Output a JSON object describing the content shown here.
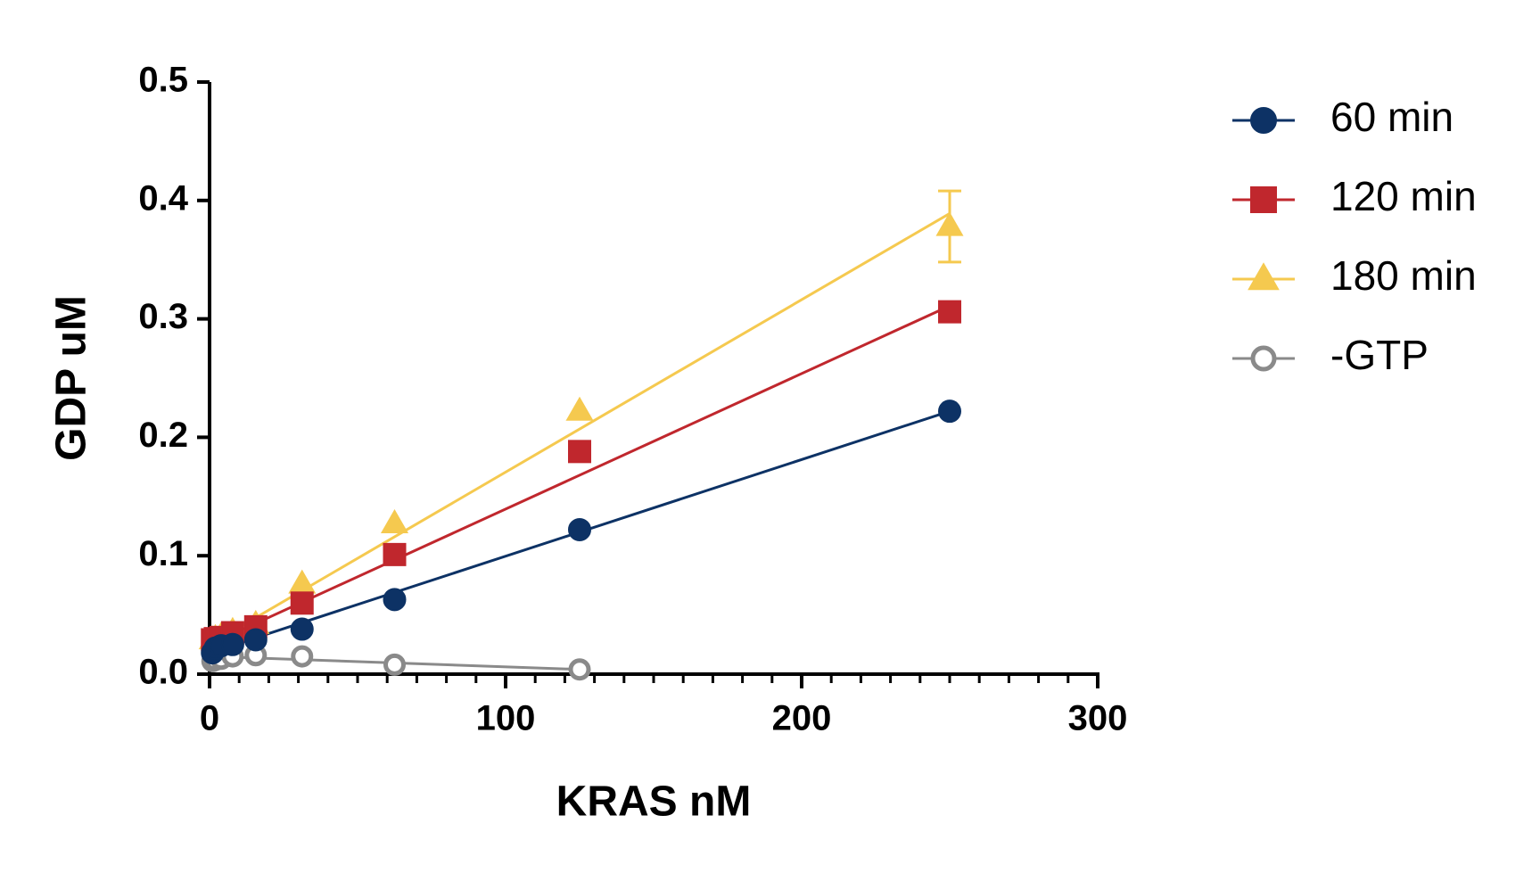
{
  "chart_data": {
    "type": "scatter",
    "xlabel": "KRAS nM",
    "ylabel": "GDP uM",
    "x": [
      0.98,
      1.95,
      3.9,
      7.8,
      15.6,
      31.25,
      62.5,
      125,
      250
    ],
    "xlim": [
      0,
      300
    ],
    "xticks": [
      0,
      100,
      200,
      300
    ],
    "xminorticks": [
      10,
      20,
      30,
      40,
      50,
      60,
      70,
      80,
      90,
      110,
      120,
      130,
      140,
      150,
      160,
      170,
      180,
      190,
      210,
      220,
      230,
      240,
      250,
      260,
      270,
      280,
      290
    ],
    "ylim": [
      0,
      0.5
    ],
    "yticks": [
      {
        "value": 0,
        "label": "0.0"
      },
      0.1,
      0.2,
      0.3,
      0.4,
      0.5
    ],
    "legend": "right",
    "series": [
      {
        "name": "60 min",
        "color": "#0d3265",
        "marker": "circle",
        "filled": true,
        "values": [
          0.018,
          0.022,
          0.024,
          0.025,
          0.029,
          0.038,
          0.063,
          0.122,
          0.222
        ],
        "fit": {
          "slope": 0.000816,
          "intercept": 0.018
        }
      },
      {
        "name": "120 min",
        "color": "#c0272d",
        "marker": "square",
        "filled": true,
        "values": [
          0.029,
          0.03,
          0.031,
          0.035,
          0.04,
          0.06,
          0.101,
          0.188,
          0.306
        ],
        "fit": {
          "slope": 0.001144,
          "intercept": 0.025
        }
      },
      {
        "name": "180 min",
        "color": "#f5c94f",
        "marker": "triangle",
        "filled": true,
        "values": [
          0.029,
          0.03,
          0.032,
          0.036,
          0.042,
          0.076,
          0.127,
          0.222,
          0.378
        ],
        "errors": [
          null,
          null,
          null,
          null,
          null,
          null,
          null,
          null,
          0.03
        ],
        "fit": {
          "slope": 0.001456,
          "intercept": 0.025
        }
      },
      {
        "name": "-GTP",
        "color": "#8a8a8a",
        "marker": "circle",
        "filled": false,
        "values": [
          0.011,
          0.012,
          0.013,
          0.015,
          0.016,
          0.015,
          0.008,
          0.004,
          null
        ],
        "fit": {
          "slope": -8.8e-05,
          "intercept": 0.015
        }
      }
    ]
  }
}
